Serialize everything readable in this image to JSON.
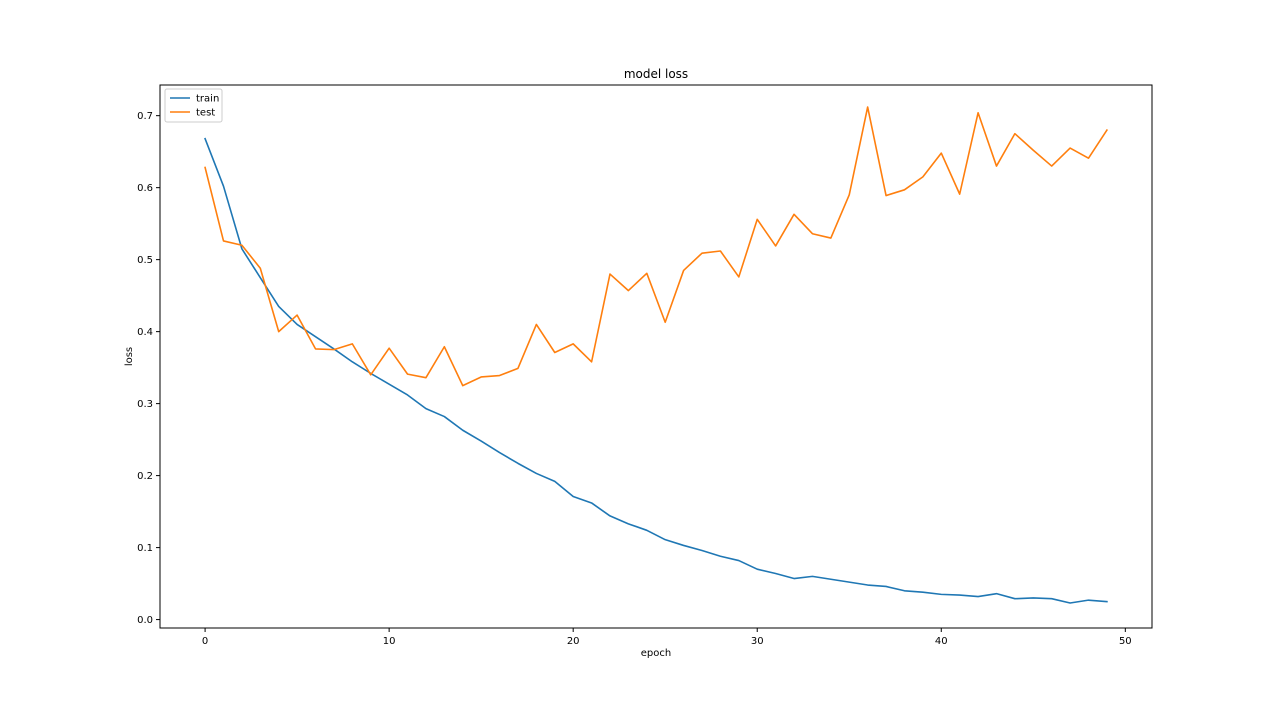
{
  "chart_data": {
    "type": "line",
    "title": "model loss",
    "xlabel": "epoch",
    "ylabel": "loss",
    "xlim": [
      -2.45,
      51.45
    ],
    "ylim": [
      -0.0117,
      0.7426
    ],
    "xticks": [
      0,
      10,
      20,
      30,
      40,
      50
    ],
    "yticks": [
      0.0,
      0.1,
      0.2,
      0.3,
      0.4,
      0.5,
      0.6,
      0.7
    ],
    "xtick_labels": [
      "0",
      "10",
      "20",
      "30",
      "40",
      "50"
    ],
    "ytick_labels": [
      "0.0",
      "0.1",
      "0.2",
      "0.3",
      "0.4",
      "0.5",
      "0.6",
      "0.7"
    ],
    "grid": false,
    "legend_position": "top-left",
    "x": [
      0,
      1,
      2,
      3,
      4,
      5,
      6,
      7,
      8,
      9,
      10,
      11,
      12,
      13,
      14,
      15,
      16,
      17,
      18,
      19,
      20,
      21,
      22,
      23,
      24,
      25,
      26,
      27,
      28,
      29,
      30,
      31,
      32,
      33,
      34,
      35,
      36,
      37,
      38,
      39,
      40,
      41,
      42,
      43,
      44,
      45,
      46,
      47,
      48,
      49
    ],
    "series": [
      {
        "name": "train",
        "color": "#1f77b4",
        "values": [
          0.668,
          0.602,
          0.515,
          0.475,
          0.435,
          0.41,
          0.393,
          0.376,
          0.358,
          0.342,
          0.327,
          0.312,
          0.293,
          0.282,
          0.263,
          0.248,
          0.232,
          0.217,
          0.203,
          0.192,
          0.171,
          0.162,
          0.144,
          0.133,
          0.124,
          0.111,
          0.103,
          0.096,
          0.088,
          0.082,
          0.07,
          0.064,
          0.057,
          0.06,
          0.056,
          0.052,
          0.048,
          0.046,
          0.04,
          0.038,
          0.035,
          0.034,
          0.032,
          0.036,
          0.029,
          0.03,
          0.029,
          0.023,
          0.027,
          0.025
        ]
      },
      {
        "name": "test",
        "color": "#ff7f0e",
        "values": [
          0.628,
          0.526,
          0.52,
          0.488,
          0.4,
          0.423,
          0.376,
          0.375,
          0.383,
          0.34,
          0.377,
          0.341,
          0.336,
          0.379,
          0.325,
          0.337,
          0.339,
          0.349,
          0.41,
          0.371,
          0.383,
          0.358,
          0.48,
          0.457,
          0.481,
          0.413,
          0.485,
          0.509,
          0.512,
          0.476,
          0.556,
          0.519,
          0.563,
          0.536,
          0.53,
          0.59,
          0.712,
          0.589,
          0.597,
          0.615,
          0.648,
          0.591,
          0.704,
          0.63,
          0.675,
          0.652,
          0.63,
          0.655,
          0.641,
          0.68
        ]
      }
    ]
  }
}
